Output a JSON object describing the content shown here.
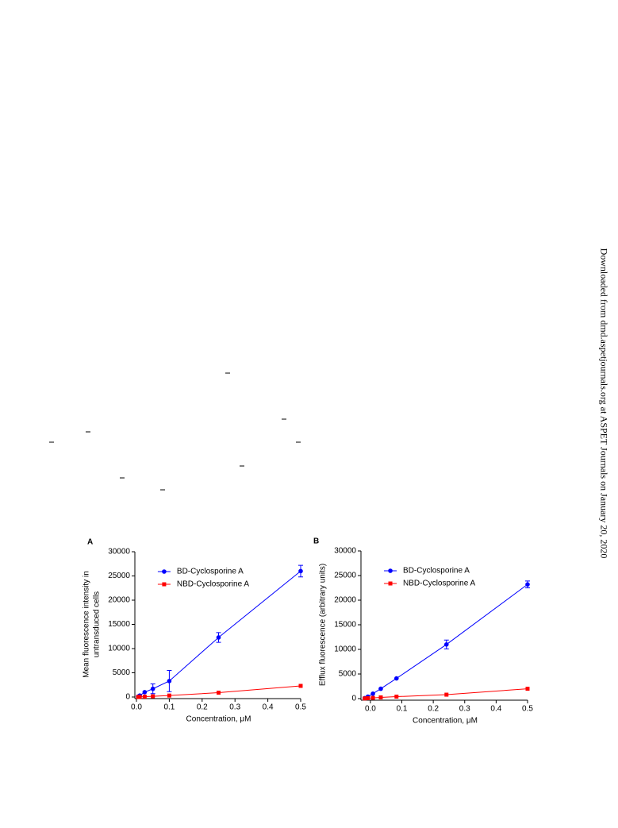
{
  "watermark": "Downloaded from dmd.aspetjournals.org at ASPET Journals on January 20, 2020",
  "chart_data": [
    {
      "type": "line",
      "label": "A",
      "ylabel": [
        "Mean fluorescence intensity in",
        "untransduced cells"
      ],
      "xlabel": "Concentration, μM",
      "xlim": [
        0,
        0.5
      ],
      "xticks": [
        {
          "value": 0,
          "label": "0.0"
        },
        0.1,
        0.2,
        0.3,
        0.4,
        0.5
      ],
      "ylim": [
        0,
        30000
      ],
      "yticks": [
        0,
        5000,
        10000,
        15000,
        20000,
        25000,
        30000
      ],
      "legend": "upper left",
      "series": [
        {
          "name": "BD-Cyclosporine A",
          "color": "#0000ff",
          "marker": "circle",
          "x": [
            0.005,
            0.01,
            0.025,
            0.05,
            0.1,
            0.25,
            0.5
          ],
          "values": [
            100,
            300,
            1000,
            1700,
            3300,
            12300,
            26000
          ],
          "errors": [
            null,
            null,
            null,
            1000,
            2200,
            1000,
            1200
          ]
        },
        {
          "name": "NBD-Cyclosporine A",
          "color": "#ff0000",
          "marker": "square",
          "x": [
            0.005,
            0.01,
            0.025,
            0.05,
            0.1,
            0.25,
            0.5
          ],
          "values": [
            10,
            30,
            80,
            150,
            300,
            900,
            2300
          ],
          "errors": [
            null,
            null,
            null,
            null,
            null,
            null,
            null
          ]
        }
      ]
    },
    {
      "type": "line",
      "label": "B",
      "ylabel": [
        "Efflux fluorescence (arbitrary units)"
      ],
      "xlabel": "Concentration, μM",
      "xlim": [
        -0.025,
        0.5
      ],
      "xticks": [
        {
          "value": 0,
          "label": "0.0"
        },
        0.1,
        0.2,
        0.3,
        0.4,
        0.5
      ],
      "ylim": [
        0,
        30000
      ],
      "yticks": [
        0,
        5000,
        10000,
        15000,
        20000,
        25000,
        30000
      ],
      "legend": "upper left",
      "series": [
        {
          "name": "BD-Cyclosporine A",
          "color": "#0000ff",
          "marker": "circle",
          "x": [
            -0.018,
            -0.008,
            0.008,
            0.033,
            0.083,
            0.242,
            0.5
          ],
          "values": [
            100,
            400,
            1000,
            2000,
            4100,
            11000,
            23200
          ],
          "errors": [
            null,
            null,
            null,
            null,
            null,
            900,
            700
          ]
        },
        {
          "name": "NBD-Cyclosporine A",
          "color": "#ff0000",
          "marker": "square",
          "x": [
            -0.018,
            -0.008,
            0.008,
            0.033,
            0.083,
            0.242,
            0.5
          ],
          "values": [
            30,
            80,
            150,
            250,
            400,
            800,
            2000
          ],
          "errors": [
            null,
            null,
            null,
            null,
            null,
            null,
            null
          ]
        }
      ]
    }
  ]
}
